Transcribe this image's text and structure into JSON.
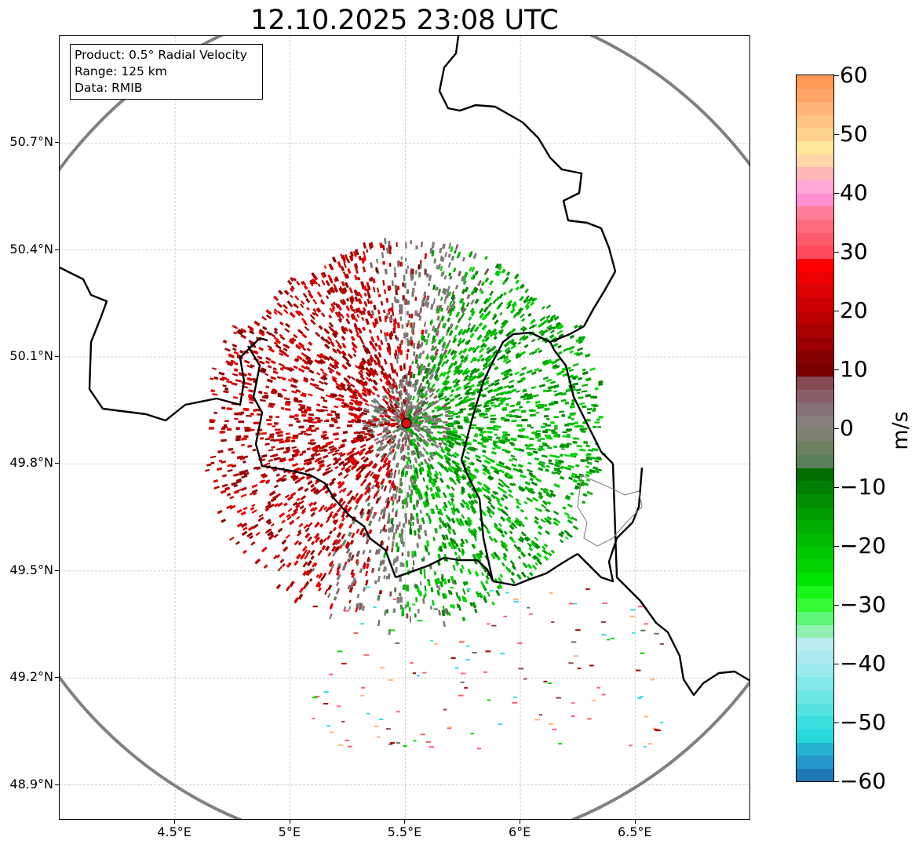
{
  "title": "12.10.2025 23:08 UTC",
  "info_box": {
    "line1": "Product: 0.5° Radial Velocity",
    "line2": "Range: 125 km",
    "line3": "Data: RMIB"
  },
  "map": {
    "lon_range": [
      4.0,
      7.0
    ],
    "lat_range": [
      48.8,
      51.0
    ],
    "radar_site": {
      "lon": 5.505,
      "lat": 49.914
    },
    "x_ticks": [
      {
        "value": 4.5,
        "label": "4.5°E"
      },
      {
        "value": 5.0,
        "label": "5°E"
      },
      {
        "value": 5.5,
        "label": "5.5°E"
      },
      {
        "value": 6.0,
        "label": "6°E"
      },
      {
        "value": 6.5,
        "label": "6.5°E"
      }
    ],
    "y_ticks": [
      {
        "value": 50.7,
        "label": "50.7°N"
      },
      {
        "value": 50.4,
        "label": "50.4°N"
      },
      {
        "value": 50.1,
        "label": "50.1°N"
      },
      {
        "value": 49.8,
        "label": "49.8°N"
      },
      {
        "value": 49.5,
        "label": "49.5°N"
      },
      {
        "value": 49.2,
        "label": "49.2°N"
      },
      {
        "value": 48.9,
        "label": "48.9°N"
      }
    ],
    "gridlines": true,
    "range_ring_color": "#808080",
    "border_color": "#000000",
    "velocity_pattern": {
      "west_sector_sign": "inbound red (positive)",
      "east_sector_sign": "outbound green (negative)",
      "near_radar": "grey-brown near-zero"
    }
  },
  "colorbar": {
    "min": -60,
    "max": 60,
    "unit": "m/s",
    "ticks": [
      {
        "value": 60,
        "label": "60"
      },
      {
        "value": 50,
        "label": "50"
      },
      {
        "value": 40,
        "label": "40"
      },
      {
        "value": 30,
        "label": "30"
      },
      {
        "value": 20,
        "label": "20"
      },
      {
        "value": 10,
        "label": "10"
      },
      {
        "value": 0,
        "label": "0"
      },
      {
        "value": -10,
        "label": "−10"
      },
      {
        "value": -20,
        "label": "−20"
      },
      {
        "value": -30,
        "label": "−30"
      },
      {
        "value": -40,
        "label": "−40"
      },
      {
        "value": -50,
        "label": "−50"
      },
      {
        "value": -60,
        "label": "−60"
      }
    ],
    "colors": [
      "#1f77b4",
      "#2596c8",
      "#24b4d0",
      "#27d8dc",
      "#3adedf",
      "#54e2e2",
      "#6ce5e5",
      "#84e8e8",
      "#99ebeb",
      "#ace9ee",
      "#baedf0",
      "#8ff0b2",
      "#5df576",
      "#35fb35",
      "#18f518",
      "#00e400",
      "#00d400",
      "#00c800",
      "#00bb00",
      "#00ad00",
      "#009f00",
      "#008f00",
      "#007f00",
      "#006d00",
      "#5a7f5a",
      "#6d8060",
      "#7e8070",
      "#867f7d",
      "#85717a",
      "#8a5f6a",
      "#874a52",
      "#7a0000",
      "#8a0000",
      "#9a0000",
      "#ab0000",
      "#bb0000",
      "#cc0000",
      "#dd0000",
      "#ee0000",
      "#ff0000",
      "#ff4a5e",
      "#ff5b6b",
      "#ff6a7c",
      "#ff7d96",
      "#ff90cf",
      "#ffa7d5",
      "#ffb6b6",
      "#ffd6a8",
      "#ffe699",
      "#ffd28b",
      "#ffc283",
      "#ffb47a",
      "#ffa566",
      "#ff9955"
    ]
  }
}
